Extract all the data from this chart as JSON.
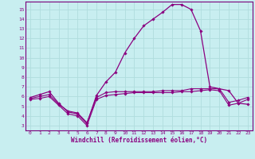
{
  "xlabel": "Windchill (Refroidissement éolien,°C)",
  "xlim": [
    -0.5,
    23.5
  ],
  "ylim": [
    2.5,
    15.8
  ],
  "xticks": [
    0,
    1,
    2,
    3,
    4,
    5,
    6,
    7,
    8,
    9,
    10,
    11,
    12,
    13,
    14,
    15,
    16,
    17,
    18,
    19,
    20,
    21,
    22,
    23
  ],
  "yticks": [
    3,
    4,
    5,
    6,
    7,
    8,
    9,
    10,
    11,
    12,
    13,
    14,
    15
  ],
  "bg_color": "#c8eef0",
  "grid_color": "#b0dddd",
  "line_color": "#8b0080",
  "spine_color": "#7a007a",
  "temp_x": [
    0,
    1,
    2,
    3,
    4,
    5,
    6,
    7,
    8,
    9,
    10,
    11,
    12,
    13,
    14,
    15,
    16,
    17,
    18,
    19,
    20,
    21,
    22,
    23
  ],
  "temp_y": [
    5.9,
    6.2,
    6.5,
    5.3,
    4.4,
    4.2,
    3.2,
    6.1,
    7.5,
    8.5,
    10.5,
    12.0,
    13.3,
    14.0,
    14.7,
    15.5,
    15.5,
    15.0,
    12.8,
    7.0,
    6.8,
    6.6,
    5.3,
    5.2
  ],
  "wind_x": [
    0,
    1,
    2,
    3,
    4,
    5,
    6,
    7,
    8,
    9,
    10,
    11,
    12,
    13,
    14,
    15,
    16,
    17,
    18,
    19,
    20,
    21,
    22,
    23
  ],
  "wind_y": [
    5.8,
    6.0,
    6.2,
    5.2,
    4.5,
    4.3,
    3.3,
    5.9,
    6.4,
    6.5,
    6.5,
    6.5,
    6.5,
    6.5,
    6.6,
    6.6,
    6.6,
    6.8,
    6.8,
    6.8,
    6.8,
    5.4,
    5.6,
    5.9
  ],
  "wc_x": [
    0,
    1,
    2,
    3,
    4,
    5,
    6,
    7,
    8,
    9,
    10,
    11,
    12,
    13,
    14,
    15,
    16,
    17,
    18,
    19,
    20,
    21,
    22,
    23
  ],
  "wc_y": [
    5.7,
    5.8,
    6.0,
    5.1,
    4.2,
    4.0,
    3.0,
    5.7,
    6.1,
    6.2,
    6.3,
    6.4,
    6.4,
    6.4,
    6.4,
    6.4,
    6.5,
    6.5,
    6.6,
    6.7,
    6.6,
    5.1,
    5.3,
    5.7
  ]
}
